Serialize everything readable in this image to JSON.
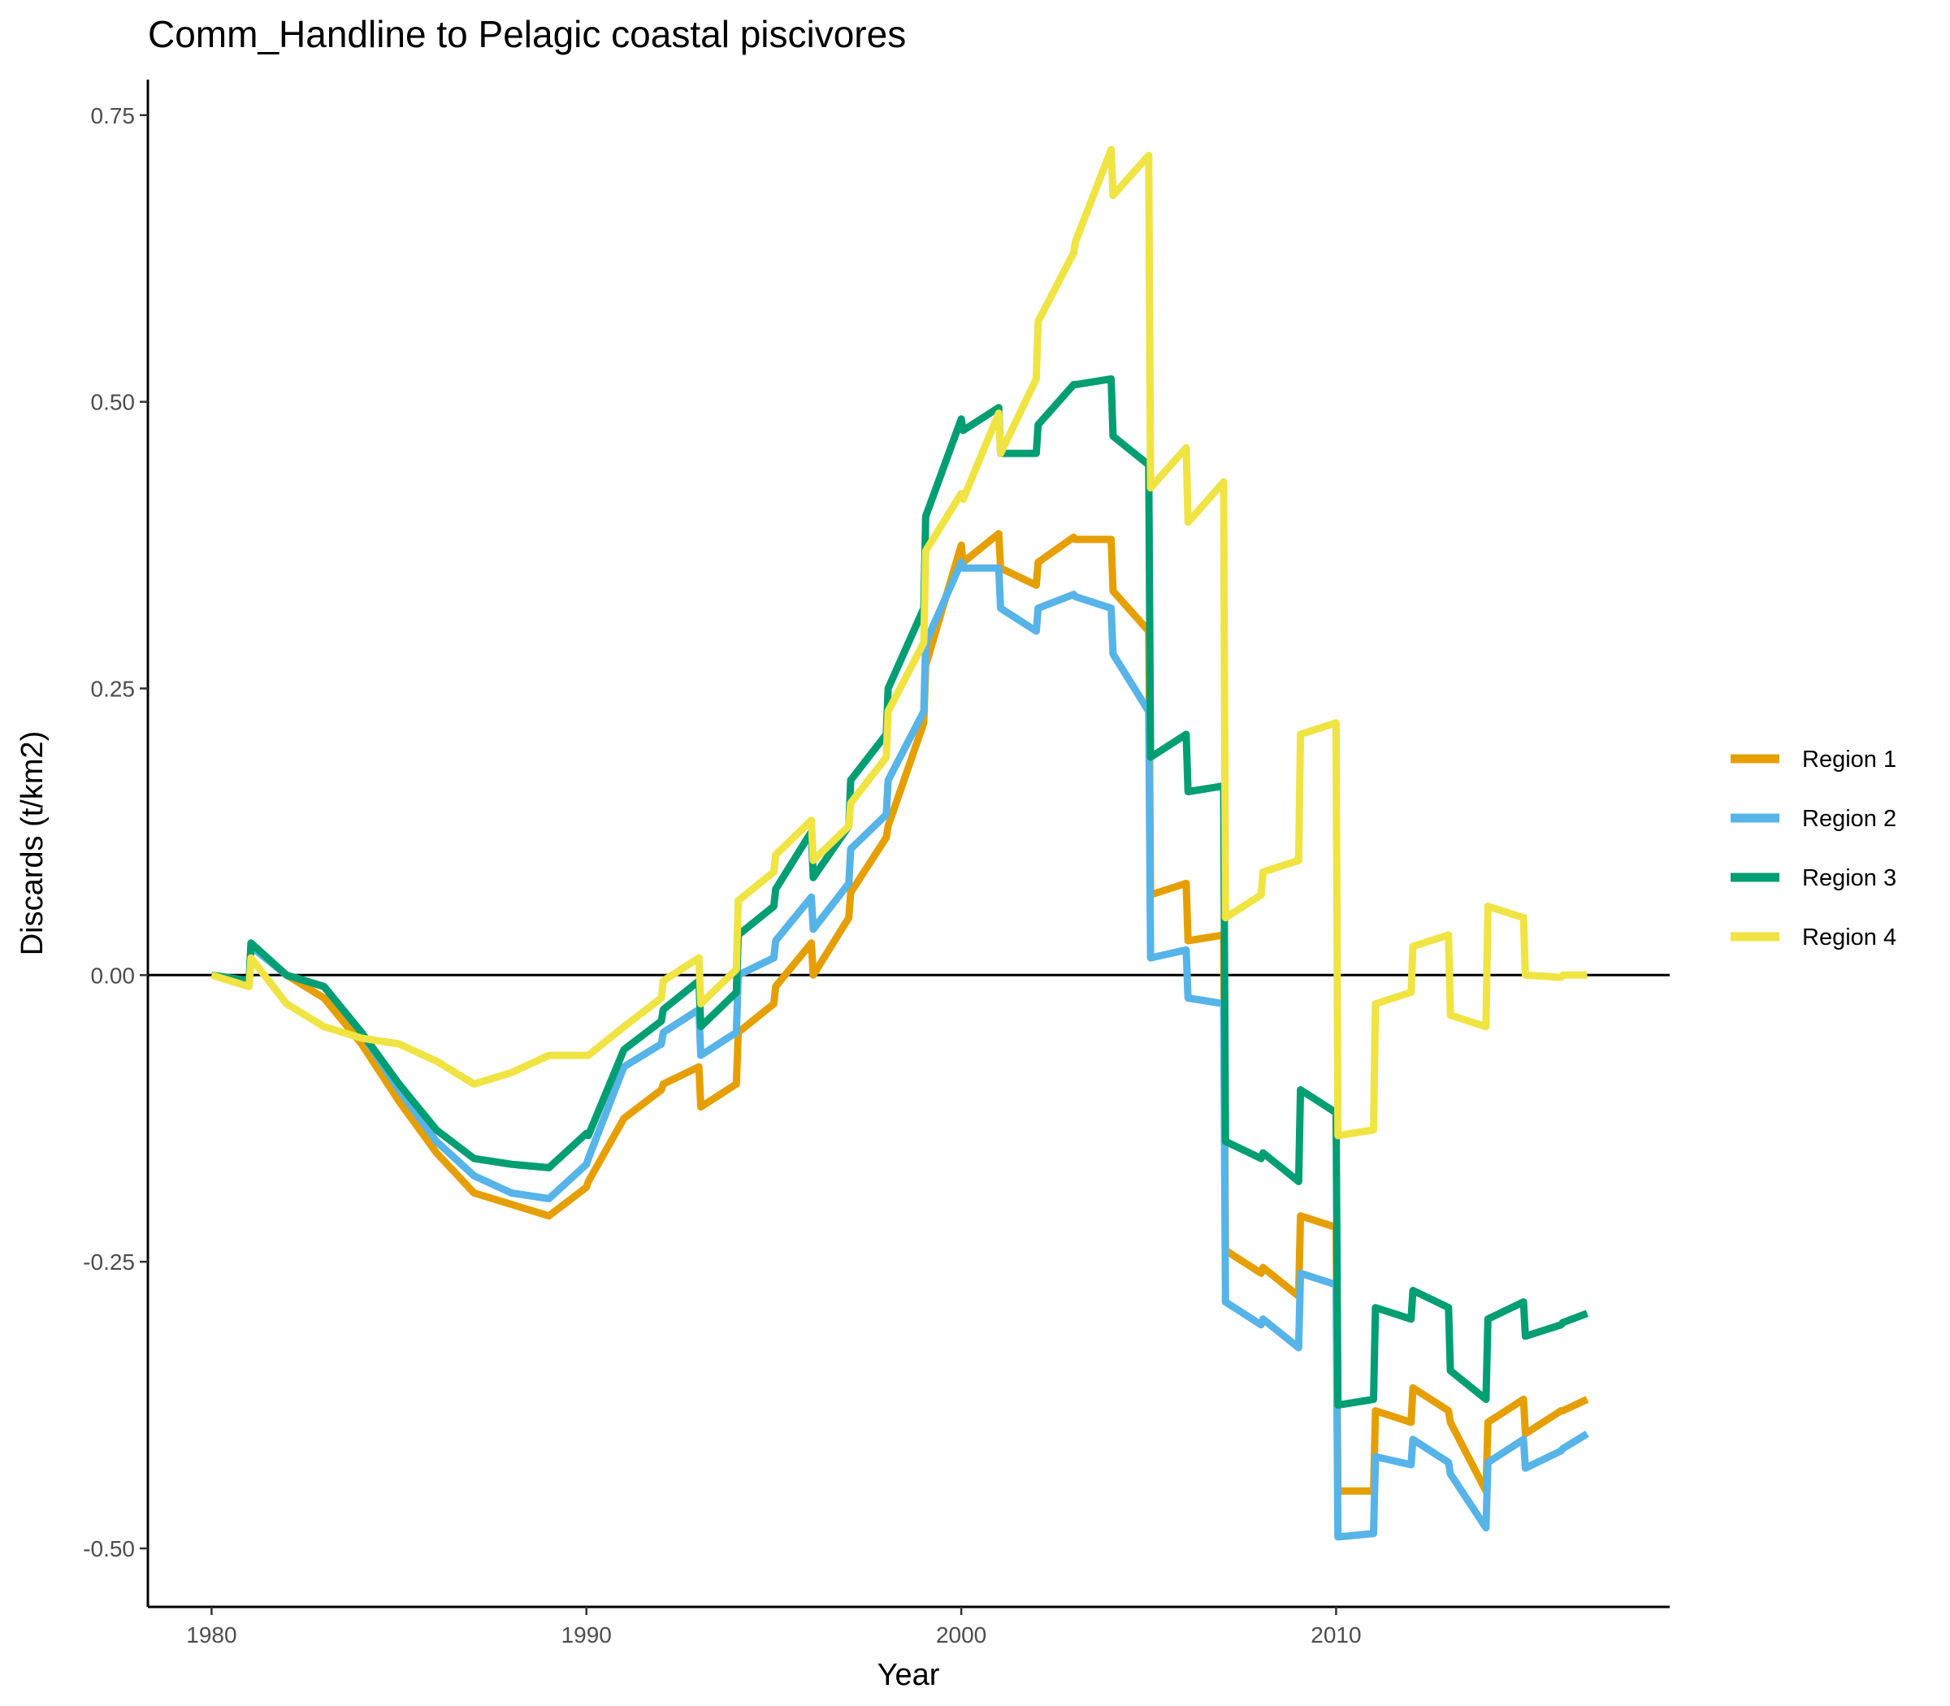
{
  "chart_data": {
    "type": "line",
    "title": "Comm_Handline to Pelagic coastal piscivores",
    "xlabel": "Year",
    "ylabel": "Discards (t/km2)",
    "xlim": [
      1978.3,
      2018.9
    ],
    "ylim": [
      -0.551,
      0.781
    ],
    "x_ticks": [
      1980,
      1990,
      2000,
      2010
    ],
    "x_tick_labels": [
      "1980",
      "1990",
      "2000",
      "2010"
    ],
    "y_ticks": [
      -0.5,
      -0.25,
      0,
      0.25,
      0.5,
      0.75
    ],
    "y_tick_labels": [
      "-0.50",
      "-0.25",
      "0.00",
      "0.25",
      "0.50",
      "0.75"
    ],
    "zero_line": true,
    "grid": false,
    "legend_position": "right",
    "series": [
      {
        "name": "Region 1",
        "color": "#E69F00",
        "x": [
          1980,
          1981,
          1981.05,
          1982,
          1983,
          1984,
          1985,
          1986,
          1987,
          1988,
          1989,
          1990,
          1990.05,
          1991,
          1992,
          1992.05,
          1993,
          1993.05,
          1994,
          1994.05,
          1995,
          1995.05,
          1996,
          1996.05,
          1997,
          1997.05,
          1998,
          1998.05,
          1999,
          1999.05,
          2000,
          2000.05,
          2001,
          2001.05,
          2002,
          2002.05,
          2003,
          2003.05,
          2004,
          2004.05,
          2005,
          2005.05,
          2006,
          2006.05,
          2007,
          2007.05,
          2008,
          2008.05,
          2009,
          2009.05,
          2010,
          2010.05,
          2011,
          2011.05,
          2012,
          2012.05,
          2013,
          2013.05,
          2014,
          2014.05,
          2015,
          2015.05,
          2016,
          2016.05,
          2016.7
        ],
        "values": [
          0,
          -0.005,
          0.025,
          0.0,
          -0.02,
          -0.06,
          -0.11,
          -0.155,
          -0.19,
          -0.2,
          -0.21,
          -0.185,
          -0.18,
          -0.125,
          -0.1,
          -0.095,
          -0.08,
          -0.115,
          -0.095,
          -0.05,
          -0.025,
          -0.01,
          0.028,
          0.0,
          0.05,
          0.072,
          0.12,
          0.13,
          0.22,
          0.27,
          0.375,
          0.36,
          0.385,
          0.355,
          0.34,
          0.36,
          0.382,
          0.38,
          0.38,
          0.335,
          0.3,
          0.07,
          0.08,
          0.03,
          0.035,
          -0.24,
          -0.26,
          -0.255,
          -0.28,
          -0.21,
          -0.22,
          -0.45,
          -0.45,
          -0.38,
          -0.39,
          -0.36,
          -0.38,
          -0.39,
          -0.45,
          -0.39,
          -0.37,
          -0.4,
          -0.38,
          -0.38,
          -0.37
        ]
      },
      {
        "name": "Region 2",
        "color": "#56B4E9",
        "x": [
          1980,
          1981,
          1981.05,
          1982,
          1983,
          1984,
          1985,
          1986,
          1987,
          1988,
          1989,
          1990,
          1990.05,
          1991,
          1992,
          1992.05,
          1993,
          1993.05,
          1994,
          1994.05,
          1995,
          1995.05,
          1996,
          1996.05,
          1997,
          1997.05,
          1998,
          1998.05,
          1999,
          1999.05,
          2000,
          2000.05,
          2001,
          2001.05,
          2002,
          2002.05,
          2003,
          2003.05,
          2004,
          2004.05,
          2005,
          2005.05,
          2006,
          2006.05,
          2007,
          2007.05,
          2008,
          2008.05,
          2009,
          2009.05,
          2010,
          2010.05,
          2011,
          2011.05,
          2012,
          2012.05,
          2013,
          2013.05,
          2014,
          2014.05,
          2015,
          2015.05,
          2016,
          2016.05,
          2016.7
        ],
        "values": [
          0,
          -0.005,
          0.025,
          0.0,
          -0.01,
          -0.05,
          -0.1,
          -0.145,
          -0.175,
          -0.19,
          -0.195,
          -0.165,
          -0.16,
          -0.08,
          -0.06,
          -0.05,
          -0.03,
          -0.07,
          -0.05,
          0.0,
          0.015,
          0.03,
          0.068,
          0.04,
          0.08,
          0.11,
          0.14,
          0.17,
          0.23,
          0.29,
          0.36,
          0.355,
          0.355,
          0.32,
          0.3,
          0.32,
          0.332,
          0.33,
          0.32,
          0.28,
          0.23,
          0.015,
          0.022,
          -0.02,
          -0.025,
          -0.285,
          -0.305,
          -0.3,
          -0.325,
          -0.26,
          -0.27,
          -0.49,
          -0.487,
          -0.42,
          -0.427,
          -0.405,
          -0.425,
          -0.435,
          -0.482,
          -0.425,
          -0.405,
          -0.43,
          -0.415,
          -0.413,
          -0.4
        ]
      },
      {
        "name": "Region 3",
        "color": "#009E73",
        "x": [
          1980,
          1981,
          1981.05,
          1982,
          1983,
          1984,
          1985,
          1986,
          1987,
          1988,
          1989,
          1990,
          1990.05,
          1991,
          1992,
          1992.05,
          1993,
          1993.05,
          1994,
          1994.05,
          1995,
          1995.05,
          1996,
          1996.05,
          1997,
          1997.05,
          1998,
          1998.05,
          1999,
          1999.05,
          2000,
          2000.05,
          2001,
          2001.05,
          2002,
          2002.05,
          2003,
          2003.05,
          2004,
          2004.05,
          2005,
          2005.05,
          2006,
          2006.05,
          2007,
          2007.05,
          2008,
          2008.05,
          2009,
          2009.05,
          2010,
          2010.05,
          2011,
          2011.05,
          2012,
          2012.05,
          2013,
          2013.05,
          2014,
          2014.05,
          2015,
          2015.05,
          2016,
          2016.05,
          2016.7
        ],
        "values": [
          0,
          -0.005,
          0.028,
          0.0,
          -0.01,
          -0.05,
          -0.095,
          -0.135,
          -0.16,
          -0.165,
          -0.168,
          -0.138,
          -0.14,
          -0.065,
          -0.04,
          -0.03,
          -0.005,
          -0.045,
          -0.015,
          0.035,
          0.06,
          0.075,
          0.125,
          0.085,
          0.13,
          0.17,
          0.21,
          0.25,
          0.32,
          0.4,
          0.485,
          0.475,
          0.495,
          0.455,
          0.455,
          0.48,
          0.515,
          0.515,
          0.52,
          0.47,
          0.445,
          0.19,
          0.21,
          0.16,
          0.165,
          -0.145,
          -0.16,
          -0.155,
          -0.18,
          -0.1,
          -0.12,
          -0.375,
          -0.37,
          -0.29,
          -0.3,
          -0.275,
          -0.29,
          -0.345,
          -0.37,
          -0.3,
          -0.285,
          -0.315,
          -0.305,
          -0.303,
          -0.295
        ]
      },
      {
        "name": "Region 4",
        "color": "#F0E442",
        "x": [
          1980,
          1981,
          1981.05,
          1982,
          1983,
          1984,
          1985,
          1986,
          1987,
          1988,
          1989,
          1990,
          1990.05,
          1991,
          1992,
          1992.05,
          1993,
          1993.05,
          1994,
          1994.05,
          1995,
          1995.05,
          1996,
          1996.05,
          1997,
          1997.05,
          1998,
          1998.05,
          1999,
          1999.05,
          2000,
          2000.05,
          2001,
          2001.05,
          2002,
          2002.05,
          2003,
          2003.05,
          2004,
          2004.05,
          2005,
          2005.05,
          2006,
          2006.05,
          2007,
          2007.05,
          2008,
          2008.05,
          2009,
          2009.05,
          2010,
          2010.05,
          2011,
          2011.05,
          2012,
          2012.05,
          2013,
          2013.05,
          2014,
          2014.05,
          2015,
          2015.05,
          2016,
          2016.05,
          2016.7
        ],
        "values": [
          0,
          -0.01,
          0.015,
          -0.025,
          -0.045,
          -0.055,
          -0.06,
          -0.075,
          -0.095,
          -0.085,
          -0.07,
          -0.07,
          -0.07,
          -0.045,
          -0.02,
          -0.005,
          0.015,
          -0.025,
          0.005,
          0.065,
          0.09,
          0.105,
          0.135,
          0.1,
          0.13,
          0.15,
          0.19,
          0.23,
          0.29,
          0.37,
          0.42,
          0.415,
          0.49,
          0.455,
          0.52,
          0.57,
          0.63,
          0.64,
          0.72,
          0.68,
          0.715,
          0.425,
          0.46,
          0.395,
          0.43,
          0.05,
          0.07,
          0.09,
          0.1,
          0.21,
          0.22,
          -0.14,
          -0.135,
          -0.025,
          -0.015,
          0.025,
          0.035,
          -0.035,
          -0.045,
          0.06,
          0.05,
          0.0,
          -0.002,
          0.0,
          0.0
        ]
      }
    ]
  }
}
